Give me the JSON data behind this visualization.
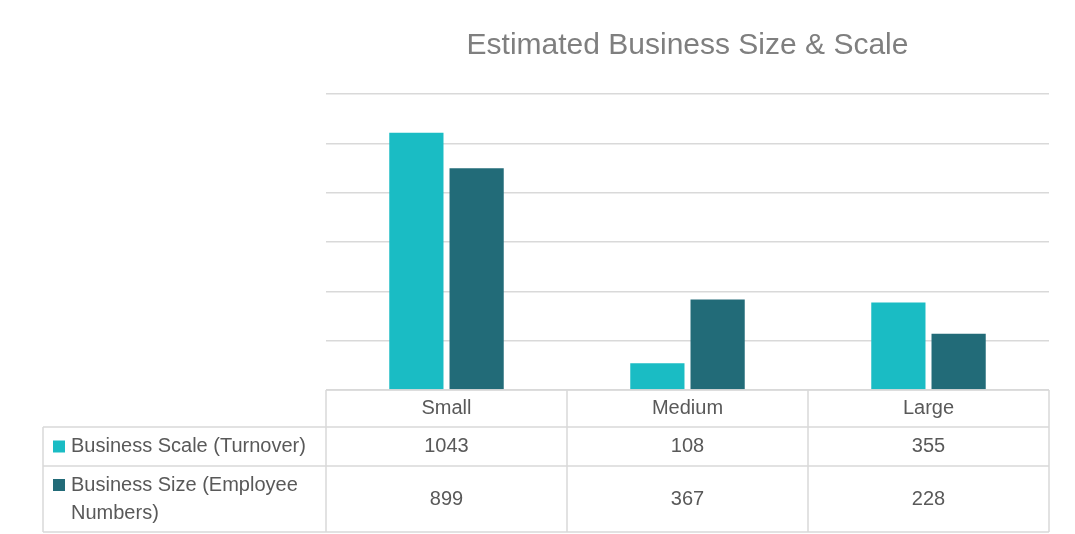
{
  "chart_data": {
    "type": "bar",
    "title": "Estimated Business Size & Scale",
    "categories": [
      "Small",
      "Medium",
      "Large"
    ],
    "series": [
      {
        "name": "Business Scale (Turnover)",
        "color": "#1abcc4",
        "values": [
          1043,
          108,
          355
        ]
      },
      {
        "name": "Business Size (Employee Numbers)",
        "color": "#226b78",
        "values": [
          899,
          367,
          228
        ]
      }
    ],
    "ylim": [
      0,
      1200
    ],
    "yticks": [
      {
        "value": 0,
        "label": null
      },
      {
        "value": 200,
        "label": null
      },
      {
        "value": 400,
        "label": null
      },
      {
        "value": 600,
        "label": null
      },
      {
        "value": 800,
        "label": null
      },
      {
        "value": 1000,
        "label": null
      },
      {
        "value": 1200,
        "label": null
      }
    ],
    "tick_labels": "x",
    "grid": "y",
    "legend": "bottom",
    "data_labels": true
  }
}
